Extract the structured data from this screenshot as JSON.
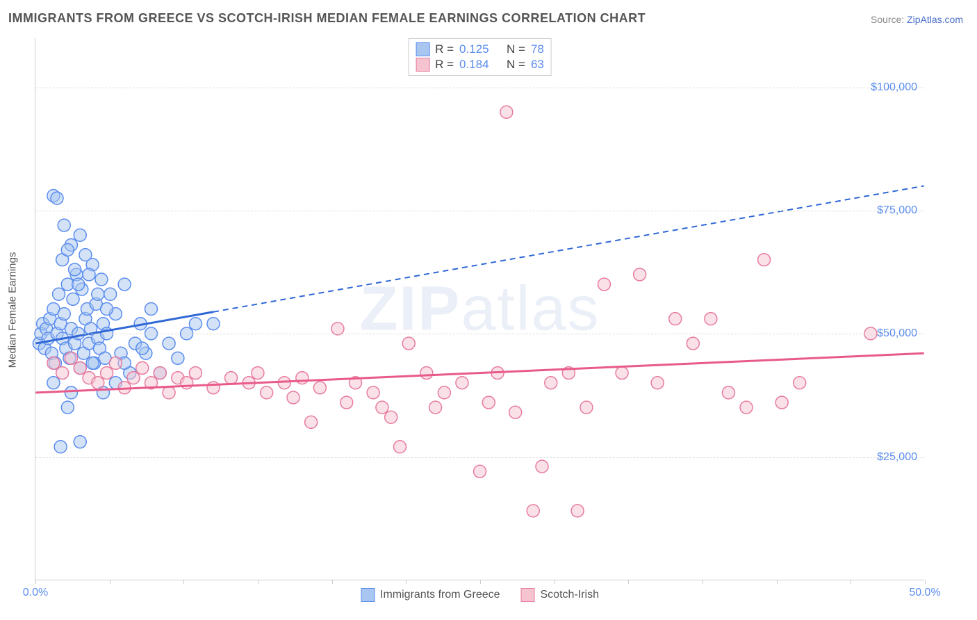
{
  "title": "IMMIGRANTS FROM GREECE VS SCOTCH-IRISH MEDIAN FEMALE EARNINGS CORRELATION CHART",
  "source_prefix": "Source: ",
  "source_link": "ZipAtlas.com",
  "y_axis_title": "Median Female Earnings",
  "watermark_bold": "ZIP",
  "watermark_rest": "atlas",
  "chart": {
    "type": "scatter",
    "xlim": [
      0,
      50
    ],
    "ylim": [
      0,
      110000
    ],
    "x_ticks": [
      0,
      4.17,
      8.33,
      12.5,
      16.67,
      20.83,
      25,
      29.17,
      33.33,
      37.5,
      41.67,
      45.83,
      50
    ],
    "x_tick_labels": {
      "0": "0.0%",
      "50": "50.0%"
    },
    "y_gridlines": [
      25000,
      50000,
      75000,
      100000
    ],
    "y_tick_labels": {
      "25000": "$25,000",
      "50000": "$50,000",
      "75000": "$75,000",
      "100000": "$100,000"
    },
    "background_color": "#ffffff",
    "grid_color": "#dddddd",
    "marker_radius": 9,
    "marker_opacity": 0.5,
    "marker_stroke_width": 1.5
  },
  "series": [
    {
      "id": "greece",
      "label": "Immigrants from Greece",
      "color_fill": "#a8c6f0",
      "color_stroke": "#5b8def",
      "line_color": "#2f68d6",
      "R": "0.125",
      "N": "78",
      "trend": {
        "x1": 0,
        "y1": 48000,
        "x2": 50,
        "y2": 80000,
        "solid_until_x": 10
      },
      "points": [
        [
          0.2,
          48000
        ],
        [
          0.3,
          50000
        ],
        [
          0.4,
          52000
        ],
        [
          0.5,
          47000
        ],
        [
          0.6,
          51000
        ],
        [
          0.7,
          49000
        ],
        [
          0.8,
          53000
        ],
        [
          0.9,
          46000
        ],
        [
          1.0,
          55000
        ],
        [
          1.1,
          44000
        ],
        [
          1.2,
          50000
        ],
        [
          1.3,
          58000
        ],
        [
          1.4,
          52000
        ],
        [
          1.5,
          49000
        ],
        [
          1.6,
          54000
        ],
        [
          1.7,
          47000
        ],
        [
          1.8,
          60000
        ],
        [
          1.9,
          45000
        ],
        [
          2.0,
          51000
        ],
        [
          2.1,
          57000
        ],
        [
          2.2,
          48000
        ],
        [
          2.3,
          62000
        ],
        [
          2.4,
          50000
        ],
        [
          2.5,
          43000
        ],
        [
          2.6,
          59000
        ],
        [
          2.7,
          46000
        ],
        [
          2.8,
          53000
        ],
        [
          2.9,
          55000
        ],
        [
          3.0,
          48000
        ],
        [
          3.1,
          51000
        ],
        [
          3.2,
          64000
        ],
        [
          3.3,
          44000
        ],
        [
          3.4,
          56000
        ],
        [
          3.5,
          49000
        ],
        [
          3.6,
          47000
        ],
        [
          3.7,
          61000
        ],
        [
          3.8,
          52000
        ],
        [
          3.9,
          45000
        ],
        [
          4.0,
          50000
        ],
        [
          4.2,
          58000
        ],
        [
          4.5,
          54000
        ],
        [
          4.8,
          46000
        ],
        [
          5.0,
          60000
        ],
        [
          5.3,
          42000
        ],
        [
          5.6,
          48000
        ],
        [
          5.9,
          52000
        ],
        [
          6.2,
          46000
        ],
        [
          6.5,
          50000
        ],
        [
          1.0,
          78000
        ],
        [
          2.0,
          68000
        ],
        [
          2.5,
          70000
        ],
        [
          1.5,
          65000
        ],
        [
          3.0,
          62000
        ],
        [
          1.8,
          67000
        ],
        [
          2.2,
          63000
        ],
        [
          3.5,
          58000
        ],
        [
          4.0,
          55000
        ],
        [
          1.2,
          77500
        ],
        [
          2.8,
          66000
        ],
        [
          1.6,
          72000
        ],
        [
          2.4,
          60000
        ],
        [
          3.8,
          38000
        ],
        [
          4.5,
          40000
        ],
        [
          5.0,
          44000
        ],
        [
          1.4,
          27000
        ],
        [
          2.0,
          38000
        ],
        [
          1.0,
          40000
        ],
        [
          3.2,
          44000
        ],
        [
          6.0,
          47000
        ],
        [
          7.0,
          42000
        ],
        [
          8.0,
          45000
        ],
        [
          9.0,
          52000
        ],
        [
          10.0,
          52000
        ],
        [
          6.5,
          55000
        ],
        [
          7.5,
          48000
        ],
        [
          8.5,
          50000
        ],
        [
          2.5,
          28000
        ],
        [
          1.8,
          35000
        ]
      ]
    },
    {
      "id": "scotch_irish",
      "label": "Scotch-Irish",
      "color_fill": "#f5c4d0",
      "color_stroke": "#e87ba0",
      "line_color": "#e85a8a",
      "R": "0.184",
      "N": "63",
      "trend": {
        "x1": 0,
        "y1": 38000,
        "x2": 50,
        "y2": 46000,
        "solid_until_x": 50
      },
      "points": [
        [
          1.0,
          44000
        ],
        [
          1.5,
          42000
        ],
        [
          2.0,
          45000
        ],
        [
          2.5,
          43000
        ],
        [
          3.0,
          41000
        ],
        [
          3.5,
          40000
        ],
        [
          4.0,
          42000
        ],
        [
          4.5,
          44000
        ],
        [
          5.0,
          39000
        ],
        [
          5.5,
          41000
        ],
        [
          6.0,
          43000
        ],
        [
          6.5,
          40000
        ],
        [
          7.0,
          42000
        ],
        [
          7.5,
          38000
        ],
        [
          8.0,
          41000
        ],
        [
          8.5,
          40000
        ],
        [
          9.0,
          42000
        ],
        [
          10.0,
          39000
        ],
        [
          11.0,
          41000
        ],
        [
          12.0,
          40000
        ],
        [
          12.5,
          42000
        ],
        [
          13.0,
          38000
        ],
        [
          14.0,
          40000
        ],
        [
          14.5,
          37000
        ],
        [
          15.0,
          41000
        ],
        [
          16.0,
          39000
        ],
        [
          17.0,
          51000
        ],
        [
          17.5,
          36000
        ],
        [
          18.0,
          40000
        ],
        [
          19.0,
          38000
        ],
        [
          19.5,
          35000
        ],
        [
          20.0,
          33000
        ],
        [
          21.0,
          48000
        ],
        [
          22.0,
          42000
        ],
        [
          22.5,
          35000
        ],
        [
          23.0,
          38000
        ],
        [
          24.0,
          40000
        ],
        [
          25.0,
          22000
        ],
        [
          25.5,
          36000
        ],
        [
          26.0,
          42000
        ],
        [
          27.0,
          34000
        ],
        [
          28.0,
          14000
        ],
        [
          28.5,
          23000
        ],
        [
          29.0,
          40000
        ],
        [
          30.0,
          42000
        ],
        [
          30.5,
          14000
        ],
        [
          31.0,
          35000
        ],
        [
          32.0,
          60000
        ],
        [
          33.0,
          42000
        ],
        [
          34.0,
          62000
        ],
        [
          35.0,
          40000
        ],
        [
          36.0,
          53000
        ],
        [
          37.0,
          48000
        ],
        [
          38.0,
          53000
        ],
        [
          39.0,
          38000
        ],
        [
          40.0,
          35000
        ],
        [
          41.0,
          65000
        ],
        [
          42.0,
          36000
        ],
        [
          43.0,
          40000
        ],
        [
          47.0,
          50000
        ],
        [
          26.5,
          95000
        ],
        [
          20.5,
          27000
        ],
        [
          15.5,
          32000
        ]
      ]
    }
  ],
  "stats_labels": {
    "R": "R =",
    "N": "N ="
  },
  "legend_bottom": [
    {
      "series": "greece"
    },
    {
      "series": "scotch_irish"
    }
  ]
}
